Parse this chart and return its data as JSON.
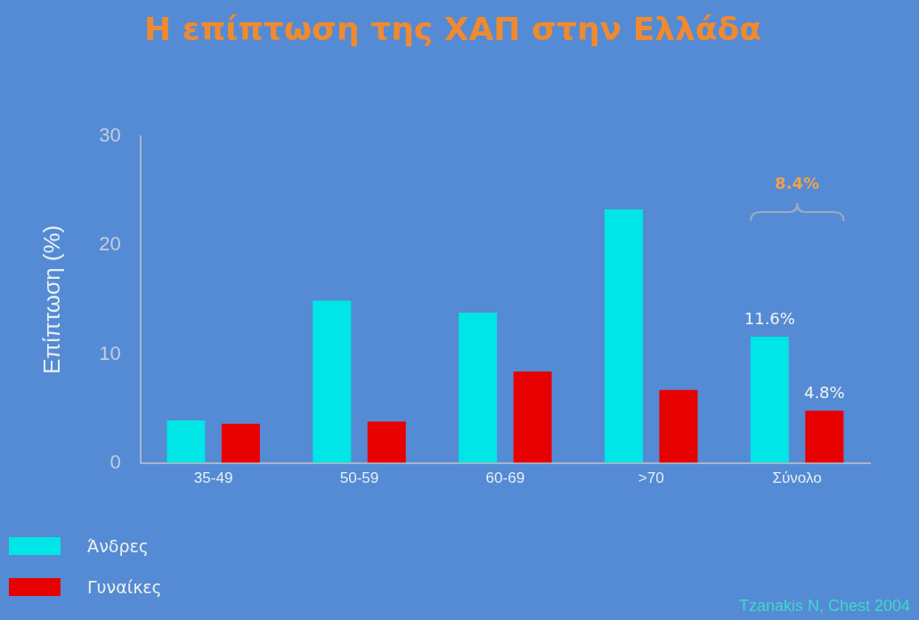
{
  "chart_data": {
    "type": "bar",
    "title": "Η επίπτωση της ΧΑΠ στην Ελλάδα",
    "ylabel": "Επίπτωση (%)",
    "categories": [
      "35-49",
      "50-59",
      "60-69",
      ">70",
      "Σύνολο"
    ],
    "series": [
      {
        "name": "Άνδρες",
        "color": "#00e5e5",
        "values": [
          3.9,
          14.9,
          13.8,
          23.3,
          11.6
        ],
        "value_labels": [
          null,
          null,
          null,
          null,
          "11.6%"
        ]
      },
      {
        "name": "Γυναίκες",
        "color": "#e80000",
        "values": [
          3.6,
          3.8,
          8.4,
          6.7,
          4.8
        ],
        "value_labels": [
          null,
          null,
          null,
          null,
          "4.8%"
        ]
      }
    ],
    "ylim": [
      0,
      30
    ],
    "yticks": [
      0,
      10,
      20,
      30
    ],
    "grid": false,
    "legend": "bottom left",
    "annotations": [
      "8.4%",
      "Tzanakis N, Chest 2004"
    ]
  }
}
